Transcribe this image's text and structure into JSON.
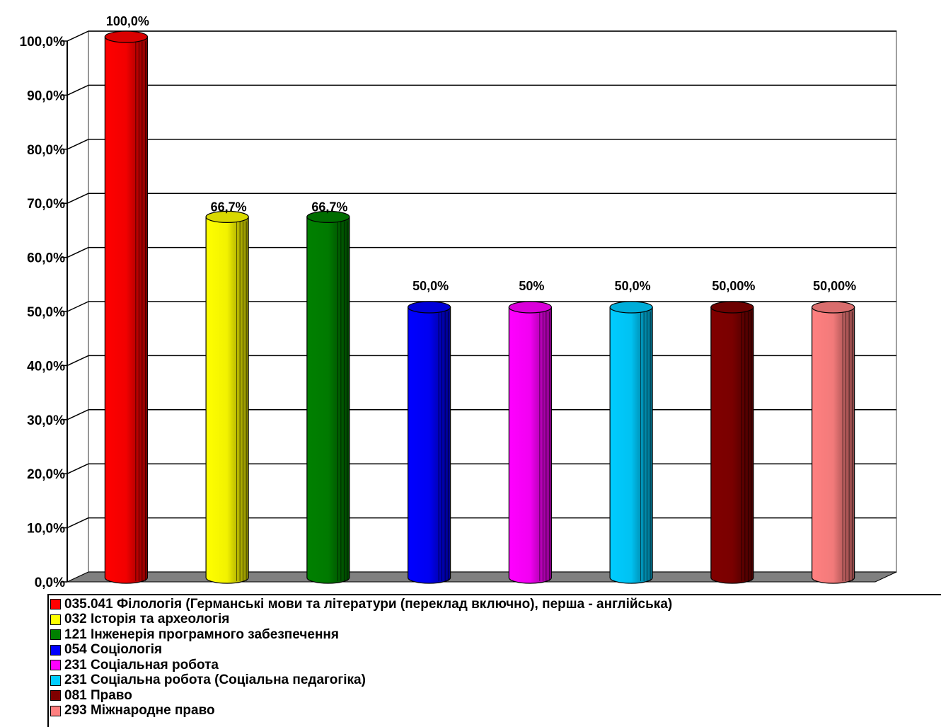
{
  "chart_data": {
    "type": "bar",
    "style": "3d-cylinder",
    "title": "",
    "xlabel": "",
    "ylabel": "",
    "ylim": [
      0,
      100
    ],
    "ytick_step": 10,
    "ytick_labels": [
      "0,0%",
      "10,0%",
      "20,0%",
      "30,0%",
      "40,0%",
      "50,0%",
      "60,0%",
      "70,0%",
      "80,0%",
      "90,0%",
      "100,0%"
    ],
    "grid": true,
    "legend_position": "bottom",
    "categories": [
      "035.041 Філологія (Германські мови та літератури (переклад включно), перша - англійська)",
      "032 Історія та археологія",
      "121 Інженерія програмного забезпечення",
      "054 Соціологія",
      "231 Соціальная робота",
      "231 Соціальна робота (Соціальна педагогіка)",
      "081 Право",
      "293 Міжнародне право"
    ],
    "values": [
      100.0,
      66.7,
      66.7,
      50.0,
      50.0,
      50.0,
      50.0,
      50.0
    ],
    "data_labels": [
      "100,0%",
      "66,7%",
      "66,7%",
      "50,0%",
      "50%",
      "50,0%",
      "50,00%",
      "50,00%"
    ],
    "colors": [
      "#ff0000",
      "#ffff00",
      "#008000",
      "#0000ff",
      "#ff00ff",
      "#00ccff",
      "#800000",
      "#ff8080"
    ],
    "floor_color": "#808080"
  }
}
